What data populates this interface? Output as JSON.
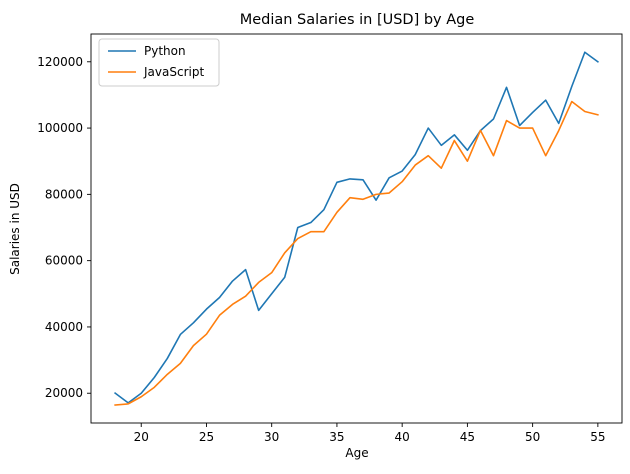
{
  "chart_data": {
    "type": "line",
    "title": "Median Salaries in [USD] by Age",
    "xlabel": "Age",
    "ylabel": "Salaries in USD",
    "xlim": [
      16.15,
      56.85
    ],
    "ylim": [
      11020,
      128380
    ],
    "xticks": [
      20,
      25,
      30,
      35,
      40,
      45,
      50,
      55
    ],
    "yticks": [
      20000,
      40000,
      60000,
      80000,
      100000,
      120000
    ],
    "grid": false,
    "legend_position": "top-left",
    "x": [
      18,
      19,
      20,
      21,
      22,
      23,
      24,
      25,
      26,
      27,
      28,
      29,
      30,
      31,
      32,
      33,
      34,
      35,
      36,
      37,
      38,
      39,
      40,
      41,
      42,
      43,
      44,
      45,
      46,
      47,
      48,
      49,
      50,
      51,
      52,
      53,
      54,
      55
    ],
    "series": [
      {
        "name": "Python",
        "color": "#1f77b4",
        "values": [
          20046,
          17100,
          20000,
          24744,
          30500,
          37732,
          41247,
          45372,
          48876,
          53850,
          57287,
          45000,
          50000,
          55000,
          70000,
          71496,
          75370,
          83640,
          84666,
          84392,
          78254,
          85000,
          87038,
          91991,
          100000,
          94796,
          97962,
          93302,
          99240,
          102736,
          112285,
          100771,
          104708,
          108423,
          101407,
          112542,
          122870,
          120000
        ]
      },
      {
        "name": "JavaScript",
        "color": "#ff7f0e",
        "values": [
          16446,
          16791,
          18942,
          21780,
          25704,
          29000,
          34372,
          37810,
          43515,
          46823,
          49293,
          53437,
          56373,
          62375,
          66674,
          68745,
          68746,
          74583,
          79000,
          78508,
          79996,
          80403,
          83820,
          88833,
          91660,
          87892,
          96243,
          90000,
          99313,
          91660,
          102264,
          100000,
          100000,
          91660,
          99240,
          108000,
          105000,
          104000
        ]
      }
    ]
  }
}
